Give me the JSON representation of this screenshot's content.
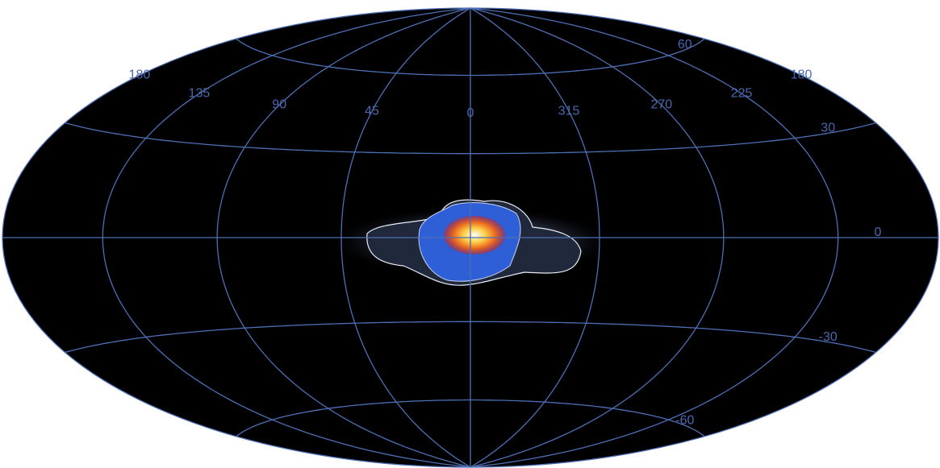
{
  "longitude_ticks": [
    180,
    135,
    90,
    45,
    0,
    315,
    270,
    225,
    180
  ],
  "latitude_ticks": [
    60,
    30,
    0,
    -30,
    -60
  ]
}
